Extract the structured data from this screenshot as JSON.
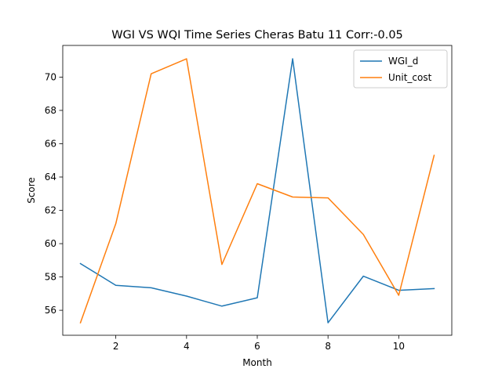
{
  "chart_data": {
    "type": "line",
    "title": "WGI VS WQI Time Series Cheras Batu 11 Corr:-0.05",
    "xlabel": "Month",
    "ylabel": "Score",
    "x": [
      1,
      2,
      3,
      4,
      5,
      6,
      7,
      8,
      9,
      10,
      11
    ],
    "xlim": [
      0.5,
      11.5
    ],
    "ylim": [
      54.5,
      71.9
    ],
    "xticks": [
      2,
      4,
      6,
      8,
      10
    ],
    "yticks": [
      56,
      58,
      60,
      62,
      64,
      66,
      68,
      70
    ],
    "grid": false,
    "legend": "top-right",
    "series": [
      {
        "name": "WGI_d",
        "color": "#1f77b4",
        "values": [
          58.8,
          57.5,
          57.35,
          56.85,
          56.25,
          56.75,
          71.1,
          55.25,
          58.05,
          57.2,
          57.3
        ]
      },
      {
        "name": "Unit_cost",
        "color": "#ff7f0e",
        "values": [
          55.25,
          61.2,
          70.2,
          71.1,
          58.75,
          63.6,
          62.8,
          62.75,
          60.55,
          56.9,
          65.3
        ]
      }
    ]
  }
}
